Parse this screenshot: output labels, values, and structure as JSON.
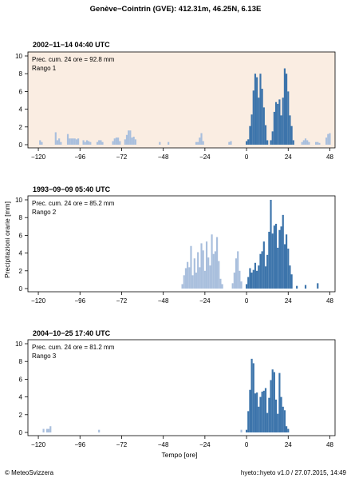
{
  "title": "Genève−Cointrin (GVE): 412.31m, 46.25N, 6.13E",
  "xlabel": "Tempo [ore]",
  "ylabel": "Precipitazioni orarie [mm]",
  "footer_left": "© MeteoSvizzera",
  "footer_right": "hyeto::hyeto v1.0 / 27.07.2015, 14:49",
  "colors": {
    "past": "#a9bfdd",
    "event": "#3c74ab",
    "highlight_bg": "#faede2",
    "axis": "#000000"
  },
  "chart_data": [
    {
      "type": "bar",
      "panel_title": "2002−11−14 04:40 UTC",
      "info_line1": "Prec. cum. 24 ore = 92.8 mm",
      "info_line2": "Rango 1",
      "highlighted": true,
      "xlim": [
        -126,
        51
      ],
      "ylim": [
        0,
        10
      ],
      "xticks": [
        -120,
        -96,
        -72,
        -48,
        -24,
        0,
        24,
        48
      ],
      "yticks": [
        0,
        2,
        4,
        6,
        8,
        10
      ],
      "past_bars": [
        [
          -119,
          0.5
        ],
        [
          -118,
          0.3
        ],
        [
          -110,
          1.4
        ],
        [
          -109,
          0.5
        ],
        [
          -108,
          0.7
        ],
        [
          -107,
          0.3
        ],
        [
          -103,
          1.2
        ],
        [
          -102,
          0.7
        ],
        [
          -101,
          0.7
        ],
        [
          -100,
          0.7
        ],
        [
          -99,
          0.7
        ],
        [
          -98,
          0.6
        ],
        [
          -97,
          0.7
        ],
        [
          -94,
          0.5
        ],
        [
          -93,
          0.3
        ],
        [
          -92,
          0.5
        ],
        [
          -91,
          0.4
        ],
        [
          -90,
          0.3
        ],
        [
          -86,
          0.3
        ],
        [
          -85,
          0.5
        ],
        [
          -84,
          0.5
        ],
        [
          -83,
          0.3
        ],
        [
          -77,
          0.4
        ],
        [
          -76,
          0.7
        ],
        [
          -75,
          0.8
        ],
        [
          -74,
          0.8
        ],
        [
          -73,
          0.4
        ],
        [
          -70,
          0.6
        ],
        [
          -69,
          1.1
        ],
        [
          -68,
          1.6
        ],
        [
          -67,
          1.6
        ],
        [
          -66,
          0.8
        ],
        [
          -65,
          0.9
        ],
        [
          -64,
          0.6
        ],
        [
          -50,
          0.3
        ],
        [
          -45,
          0.3
        ],
        [
          -29,
          0.3
        ],
        [
          -28,
          0.3
        ],
        [
          -27,
          0.8
        ],
        [
          -26,
          1.3
        ],
        [
          -25,
          0.4
        ],
        [
          -10,
          0.3
        ],
        [
          -9,
          0.4
        ],
        [
          32,
          0.3
        ],
        [
          33,
          0.5
        ],
        [
          34,
          0.7
        ],
        [
          35,
          0.5
        ],
        [
          36,
          0.3
        ],
        [
          40,
          0.3
        ],
        [
          41,
          0.3
        ],
        [
          42,
          0.2
        ],
        [
          46,
          0.8
        ],
        [
          47,
          1.2
        ],
        [
          48,
          1.3
        ]
      ],
      "event_bars": [
        [
          0,
          0.4
        ],
        [
          1,
          0.6
        ],
        [
          2,
          2.1
        ],
        [
          3,
          3.4
        ],
        [
          4,
          6.1
        ],
        [
          5,
          8.0
        ],
        [
          6,
          7.6
        ],
        [
          7,
          5.3
        ],
        [
          8,
          8.0
        ],
        [
          9,
          6.3
        ],
        [
          10,
          4.2
        ],
        [
          11,
          2.2
        ],
        [
          12,
          0.5
        ],
        [
          14,
          0.5
        ],
        [
          15,
          1.5
        ],
        [
          16,
          3.7
        ],
        [
          17,
          4.8
        ],
        [
          18,
          4.6
        ],
        [
          19,
          5.1
        ],
        [
          20,
          3.3
        ],
        [
          21,
          5.3
        ],
        [
          22,
          8.6
        ],
        [
          23,
          8.0
        ],
        [
          24,
          6.0
        ],
        [
          25,
          3.3
        ],
        [
          26,
          2.1
        ],
        [
          27,
          0.5
        ]
      ]
    },
    {
      "type": "bar",
      "panel_title": "1993−09−09 05:40 UTC",
      "info_line1": "Prec. cum. 24 ore = 85.2 mm",
      "info_line2": "Rango 2",
      "highlighted": false,
      "xlim": [
        -126,
        51
      ],
      "ylim": [
        0,
        10
      ],
      "xticks": [
        -120,
        -96,
        -72,
        -48,
        -24,
        0,
        24,
        48
      ],
      "yticks": [
        0,
        2,
        4,
        6,
        8,
        10
      ],
      "past_bars": [
        [
          -37,
          0.5
        ],
        [
          -36,
          1.5
        ],
        [
          -35,
          2.3
        ],
        [
          -34,
          3.0
        ],
        [
          -33,
          2.4
        ],
        [
          -32,
          4.8
        ],
        [
          -31,
          1.5
        ],
        [
          -30,
          3.4
        ],
        [
          -29,
          1.8
        ],
        [
          -28,
          4.1
        ],
        [
          -27,
          2.4
        ],
        [
          -26,
          5.1
        ],
        [
          -25,
          4.3
        ],
        [
          -24,
          2.0
        ],
        [
          -23,
          5.3
        ],
        [
          -22,
          3.5
        ],
        [
          -21,
          2.6
        ],
        [
          -20,
          6.1
        ],
        [
          -19,
          3.9
        ],
        [
          -18,
          4.2
        ],
        [
          -17,
          5.8
        ],
        [
          -16,
          3.1
        ],
        [
          -15,
          1.1
        ],
        [
          -14,
          0.5
        ],
        [
          -8,
          0.6
        ],
        [
          -7,
          1.8
        ],
        [
          -6,
          3.4
        ],
        [
          -5,
          4.2
        ],
        [
          -4,
          2.0
        ],
        [
          -3,
          0.8
        ]
      ],
      "event_bars": [
        [
          0,
          0.5
        ],
        [
          1,
          1.3
        ],
        [
          2,
          2.3
        ],
        [
          3,
          1.8
        ],
        [
          4,
          2.1
        ],
        [
          5,
          2.9
        ],
        [
          6,
          2.0
        ],
        [
          7,
          2.6
        ],
        [
          8,
          3.9
        ],
        [
          9,
          4.2
        ],
        [
          10,
          5.3
        ],
        [
          11,
          2.5
        ],
        [
          12,
          3.8
        ],
        [
          13,
          6.4
        ],
        [
          14,
          10.0
        ],
        [
          15,
          6.2
        ],
        [
          16,
          7.1
        ],
        [
          17,
          7.3
        ],
        [
          18,
          4.6
        ],
        [
          19,
          6.6
        ],
        [
          20,
          7.0
        ],
        [
          21,
          8.3
        ],
        [
          22,
          5.0
        ],
        [
          23,
          6.1
        ],
        [
          24,
          4.5
        ],
        [
          25,
          2.6
        ],
        [
          26,
          1.6
        ],
        [
          29,
          0.3
        ],
        [
          34,
          0.4
        ],
        [
          41,
          0.6
        ]
      ]
    },
    {
      "type": "bar",
      "panel_title": "2004−10−25 17:40 UTC",
      "info_line1": "Prec. cum. 24 ore = 81.2 mm",
      "info_line2": "Rango 3",
      "highlighted": false,
      "xlim": [
        -126,
        51
      ],
      "ylim": [
        0,
        10
      ],
      "xticks": [
        -120,
        -96,
        -72,
        -48,
        -24,
        0,
        24,
        48
      ],
      "yticks": [
        0,
        2,
        4,
        6,
        8,
        10
      ],
      "past_bars": [
        [
          -117,
          0.4
        ],
        [
          -115,
          0.4
        ],
        [
          -114,
          0.4
        ],
        [
          -113,
          0.7
        ],
        [
          -85,
          0.3
        ],
        [
          -3,
          0.3
        ]
      ],
      "event_bars": [
        [
          0,
          0.3
        ],
        [
          1,
          2.4
        ],
        [
          2,
          4.8
        ],
        [
          3,
          8.3
        ],
        [
          4,
          7.8
        ],
        [
          5,
          4.4
        ],
        [
          6,
          4.5
        ],
        [
          7,
          2.9
        ],
        [
          8,
          4.0
        ],
        [
          9,
          4.6
        ],
        [
          10,
          4.7
        ],
        [
          11,
          5.0
        ],
        [
          12,
          2.2
        ],
        [
          13,
          3.9
        ],
        [
          14,
          5.9
        ],
        [
          15,
          7.1
        ],
        [
          16,
          6.8
        ],
        [
          17,
          3.7
        ],
        [
          18,
          2.1
        ],
        [
          19,
          6.7
        ],
        [
          20,
          4.0
        ],
        [
          21,
          2.9
        ],
        [
          22,
          2.5
        ],
        [
          23,
          0.7
        ],
        [
          24,
          0.4
        ]
      ]
    }
  ]
}
